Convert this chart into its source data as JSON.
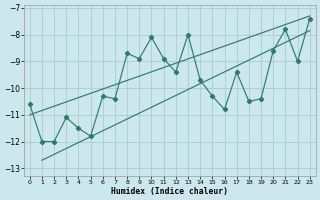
{
  "xlabel": "Humidex (Indice chaleur)",
  "ylabel": "",
  "bg_color": "#cce8ee",
  "line_color": "#2e7b6e",
  "grid_color": "#aacccc",
  "xlim": [
    -0.5,
    23.5
  ],
  "ylim": [
    -13.3,
    -6.9
  ],
  "xticks": [
    0,
    1,
    2,
    3,
    4,
    5,
    6,
    7,
    8,
    9,
    10,
    11,
    12,
    13,
    14,
    15,
    16,
    17,
    18,
    19,
    20,
    21,
    22,
    23
  ],
  "yticks": [
    -13,
    -12,
    -11,
    -10,
    -9,
    -8,
    -7
  ],
  "main_x": [
    0,
    1,
    2,
    3,
    4,
    5,
    6,
    7,
    8,
    9,
    10,
    11,
    12,
    13,
    14,
    15,
    16,
    17,
    18,
    19,
    20,
    21,
    22,
    23
  ],
  "main_y": [
    -10.6,
    -12.0,
    -12.0,
    -11.1,
    -11.5,
    -11.8,
    -10.3,
    -10.4,
    -8.7,
    -8.9,
    -8.1,
    -8.9,
    -9.4,
    -8.0,
    -9.7,
    -10.3,
    -10.8,
    -9.4,
    -10.5,
    -10.4,
    -8.6,
    -7.8,
    -9.0,
    -7.4
  ],
  "lower_line_x": [
    1,
    23
  ],
  "lower_line_y": [
    -12.7,
    -7.85
  ],
  "upper_line_x": [
    0,
    23
  ],
  "upper_line_y": [
    -11.0,
    -7.3
  ]
}
